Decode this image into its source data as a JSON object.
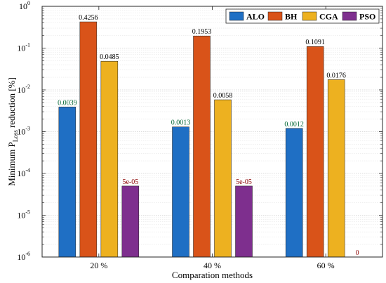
{
  "chart_data": {
    "type": "bar",
    "categories": [
      "20 %",
      "40 %",
      "60 %"
    ],
    "xlabel": "Comparation methods",
    "ylabel": {
      "prefix": "Minimum P",
      "subscript": "Loss",
      "suffix": " reduction [%]"
    },
    "y_scale": "log",
    "ylim": [
      1e-06,
      1
    ],
    "y_ticks": [
      {
        "value": 1,
        "mantissa": "10",
        "exponent": "0"
      },
      {
        "value": 0.1,
        "mantissa": "10",
        "exponent": "-1"
      },
      {
        "value": 0.01,
        "mantissa": "10",
        "exponent": "-2"
      },
      {
        "value": 0.001,
        "mantissa": "10",
        "exponent": "-3"
      },
      {
        "value": 0.0001,
        "mantissa": "10",
        "exponent": "-4"
      },
      {
        "value": 1e-05,
        "mantissa": "10",
        "exponent": "-5"
      },
      {
        "value": 1e-06,
        "mantissa": "10",
        "exponent": "-6"
      }
    ],
    "grid": true,
    "legend_position": "top-right",
    "series": [
      {
        "name": "ALO",
        "color": "#1f6fc4",
        "label_color": "#006633",
        "values": [
          0.0039,
          0.0013,
          0.0012
        ],
        "labels": [
          "0.0039",
          "0.0013",
          "0.0012"
        ]
      },
      {
        "name": "BH",
        "color": "#d95319",
        "label_color": "#000000",
        "values": [
          0.4256,
          0.1953,
          0.1091
        ],
        "labels": [
          "0.4256",
          "0.1953",
          "0.1091"
        ]
      },
      {
        "name": "CGA",
        "color": "#edb120",
        "label_color": "#000000",
        "values": [
          0.0485,
          0.0058,
          0.0176
        ],
        "labels": [
          "0.0485",
          "0.0058",
          "0.0176"
        ]
      },
      {
        "name": "PSO",
        "color": "#7e2f8e",
        "label_color": "#8b0000",
        "values": [
          5e-05,
          5e-05,
          0
        ],
        "labels": [
          "5e-05",
          "5e-05",
          "0"
        ]
      }
    ]
  }
}
